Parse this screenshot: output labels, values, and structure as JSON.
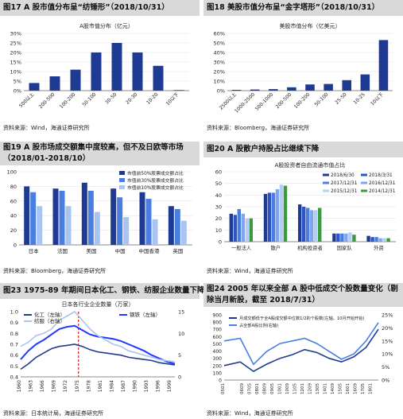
{
  "panels": [
    {
      "title": "图17 A 股市值分布呈“纺锤形”（2018/10/31）",
      "source": "资料来源：Wind，海通证券研究所",
      "chart_data": {
        "type": "bar",
        "title": "A股市值分布（亿元）",
        "categories": [
          "500以上",
          "200-500",
          "100-200",
          "50-100",
          "30-50",
          "20-30",
          "10-20",
          "10以下"
        ],
        "values": [
          4,
          7.5,
          11,
          20,
          25,
          20,
          13,
          0.3
        ],
        "ylim": [
          0,
          30
        ],
        "yticks": [
          "0%",
          "5%",
          "10%",
          "15%",
          "20%",
          "25%",
          "30%"
        ],
        "color": "#1f3a93"
      }
    },
    {
      "title": "图18 美股市值分布呈“金字塔形”（2018/10/31）",
      "source": "资料来源：Bloomberg，海通证券研究所",
      "chart_data": {
        "type": "bar",
        "title": "美股市值分布（亿美元）",
        "categories": [
          "2500以上",
          "1000-2500",
          "500-1000",
          "200-500",
          "100-200",
          "50-100",
          "25-50",
          "10-25",
          "10以下"
        ],
        "values": [
          0.8,
          1.2,
          1.6,
          3.5,
          6.5,
          7,
          11,
          17,
          53
        ],
        "ylim": [
          0,
          60
        ],
        "yticks": [
          "0%",
          "10%",
          "20%",
          "30%",
          "40%",
          "50%",
          "60%"
        ],
        "color": "#1f3a93"
      }
    },
    {
      "title": "图19 A 股市场成交额集中度较高，但不及日欧等市场（2018/01-2018/10）",
      "source": "资料来源：Bloomberg，海通证券研究所",
      "chart_data": {
        "type": "bar",
        "categories": [
          "日本",
          "法国",
          "美国",
          "中国",
          "中国香港",
          "英国"
        ],
        "series": [
          {
            "name": "市值前50%股票成交额占比",
            "values": [
              80,
              77,
              85,
              77,
              72,
              53
            ],
            "color": "#1f3a93"
          },
          {
            "name": "市值前30%股票成交额占比",
            "values": [
              72,
              74,
              74,
              65,
              63,
              49
            ],
            "color": "#4a7fe0"
          },
          {
            "name": "市值前10%股票成交额占比",
            "values": [
              53,
              53,
              45,
              38,
              35,
              33
            ],
            "color": "#a9c4f0"
          }
        ],
        "ylim": [
          0,
          100
        ],
        "yticks": [
          "0",
          "20",
          "40",
          "60",
          "80",
          "100"
        ]
      }
    },
    {
      "title": "图20 A 股散户持股占比继续下降",
      "source": "资料来源：Wind，海通证券研究所",
      "chart_data": {
        "type": "bar",
        "title": "A股投资者自由流通市值占比",
        "categories": [
          "一般法人",
          "散户",
          "机构投资者",
          "国家队",
          "外资"
        ],
        "series": [
          {
            "name": "2018/6/30",
            "values": [
              24,
              41,
              32,
              7,
              5
            ],
            "color": "#1f3a93"
          },
          {
            "name": "2018/3/31",
            "values": [
              23,
              42,
              30,
              7,
              4
            ],
            "color": "#2e55c7"
          },
          {
            "name": "2017/12/31",
            "values": [
              28,
              42,
              29,
              7,
              4
            ],
            "color": "#4a7fe0"
          },
          {
            "name": "2016/12/31",
            "values": [
              24,
              45,
              27,
              7,
              3
            ],
            "color": "#7fa6ec"
          },
          {
            "name": "2015/12/31",
            "values": [
              20,
              49,
              27,
              8,
              3
            ],
            "color": "#b3cdf4"
          },
          {
            "name": "2014/12/31",
            "values": [
              20,
              48,
              29,
              6,
              3
            ],
            "color": "#3c9a3c"
          }
        ],
        "ylim": [
          0,
          60
        ],
        "yticks": [
          "0",
          "10",
          "20",
          "30",
          "40",
          "50",
          "60"
        ]
      }
    },
    {
      "title": "图23 1975-89 年期间日本化工、钢铁、纺服企业数量下降",
      "source": "资料来源：日本统计局，海通证券研究所",
      "chart_data": {
        "type": "line",
        "title": "日本各行业企业数量（万家）",
        "x": [
          "1960",
          "1962",
          "1964",
          "1966",
          "1968",
          "1970",
          "1972",
          "1974",
          "1976",
          "1978",
          "1980",
          "1982",
          "1984",
          "1986",
          "1988",
          "1990",
          "1992",
          "1994",
          "1996",
          "1998",
          "2000"
        ],
        "xticks": [
          "1960",
          "1963",
          "1966",
          "1969",
          "1972",
          "1975",
          "1978",
          "1981",
          "1984",
          "1987",
          "1990",
          "1993",
          "1996",
          "1999"
        ],
        "series": [
          {
            "name": "化工（左轴）",
            "axis": "left",
            "color": "#1f3a93",
            "width": 1.6,
            "values": [
              0.47,
              0.52,
              0.58,
              0.62,
              0.66,
              0.68,
              0.69,
              0.7,
              0.68,
              0.65,
              0.63,
              0.62,
              0.61,
              0.6,
              0.58,
              0.57,
              0.56,
              0.55,
              0.53,
              0.52,
              0.51
            ]
          },
          {
            "name": "钢铁（左轴）",
            "axis": "left",
            "color": "#1f3aff",
            "width": 2,
            "values": [
              0.56,
              0.64,
              0.7,
              0.74,
              0.79,
              0.84,
              0.86,
              0.87,
              0.83,
              0.79,
              0.77,
              0.76,
              0.75,
              0.73,
              0.7,
              0.67,
              0.64,
              0.6,
              0.57,
              0.54,
              0.52
            ]
          },
          {
            "name": "纺服（右轴）",
            "axis": "right",
            "color": "#a9c4f0",
            "width": 1.6,
            "values": [
              7,
              8,
              9.5,
              10,
              11,
              13,
              14,
              15,
              13,
              11,
              9.5,
              8.5,
              7.5,
              7,
              6,
              5.5,
              5,
              4.5,
              4,
              3.7,
              3.5
            ]
          }
        ],
        "yleft": [
          0.4,
          1.0
        ],
        "ylticks": [
          "0.4",
          "0.5",
          "0.6",
          "0.7",
          "0.8",
          "0.9",
          "1.0"
        ],
        "yright": [
          0,
          15
        ],
        "yrticks": [
          "0",
          "5",
          "10",
          "15"
        ],
        "marker_year": "1975"
      }
    },
    {
      "title": "图24 2005 年以来全部 A 股中低成交个股数量变化（剔除当月新股，截至 2018/7/31）",
      "source": "资料来源：Wind，海通证券研究所",
      "chart_data": {
        "type": "line",
        "x": [
          "0501",
          "0606",
          "0708",
          "0810",
          "0912",
          "1101",
          "1202",
          "1303",
          "1404",
          "1505",
          "1606",
          "1707",
          "1808"
        ],
        "xticks": [
          "0501",
          "0605",
          "0609",
          "0701",
          "0705",
          "0709",
          "0801",
          "0805",
          "0809",
          "0901",
          "0905",
          "0909",
          "1001",
          "1005",
          "1009",
          "1101",
          "1105",
          "1109",
          "1201",
          "1205",
          "1209",
          "1301",
          "1305",
          "1309",
          "1401",
          "1405",
          "1409",
          "1501",
          "1505",
          "1509",
          "1601",
          "1605",
          "1609",
          "1701",
          "1705",
          "1709",
          "1801",
          "1805"
        ],
        "series": [
          {
            "name": "月成交额低于全A股成交额中位数1/2的个股数(左轴，10月开始开始)",
            "axis": "left",
            "color": "#1f3a93",
            "width": 1.6,
            "values": [
              200,
              250,
              120,
              220,
              300,
              350,
              420,
              380,
              300,
              250,
              320,
              450,
              700
            ]
          },
          {
            "name": "占全部A股比例(右轴)",
            "axis": "right",
            "color": "#4a7fe0",
            "width": 1.6,
            "values": [
              15,
              16,
              6,
              11,
              14,
              15,
              16,
              14,
              11,
              8,
              10,
              15,
              22
            ]
          }
        ],
        "yleft": [
          0,
          900
        ],
        "ylticks": [
          "0",
          "100",
          "200",
          "300",
          "400",
          "500",
          "600",
          "700",
          "800",
          "900"
        ],
        "yright": [
          0,
          25
        ],
        "yrticks": [
          "0%",
          "5%",
          "10%",
          "15%",
          "20%",
          "25%"
        ]
      }
    }
  ]
}
